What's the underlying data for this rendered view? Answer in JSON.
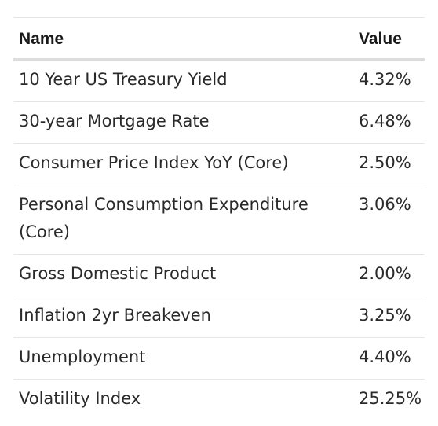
{
  "table": {
    "headers": {
      "name": "Name",
      "value": "Value"
    },
    "rows": [
      {
        "name": "10 Year US Treasury Yield",
        "value": "4.32%"
      },
      {
        "name": "30-year Mortgage Rate",
        "value": "6.48%"
      },
      {
        "name": "Consumer Price Index YoY (Core)",
        "value": "2.50%"
      },
      {
        "name": "Personal Consumption Expenditure (Core)",
        "value": "3.06%"
      },
      {
        "name": "Gross Domestic Product",
        "value": "2.00%"
      },
      {
        "name": "Inflation 2yr Breakeven",
        "value": "3.25%"
      },
      {
        "name": "Unemployment",
        "value": "4.40%"
      },
      {
        "name": "Volatility Index",
        "value": "25.25%"
      }
    ]
  }
}
